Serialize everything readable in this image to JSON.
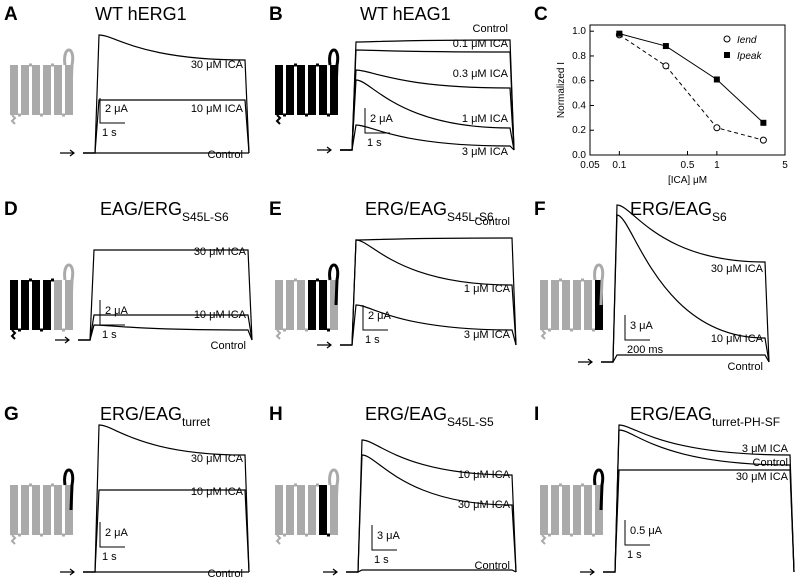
{
  "panels": [
    {
      "letter": "A",
      "title": "WT hERG1",
      "traces": [
        "30 μM ICA",
        "10 μM ICA",
        "Control"
      ],
      "scale": [
        "2 μA",
        "1 s"
      ]
    },
    {
      "letter": "B",
      "title": "WT hEAG1",
      "traces": [
        "Control",
        "0.1 μM ICA",
        "0.3 μM ICA",
        "1 μM ICA",
        "3 μM ICA"
      ],
      "scale": [
        "2 μA",
        "1 s"
      ]
    },
    {
      "letter": "C"
    },
    {
      "letter": "D",
      "title": "EAG/ERG",
      "subscript": "S45L-S6",
      "traces": [
        "30 μM ICA",
        "10 μM ICA",
        "Control"
      ],
      "scale": [
        "2 μA",
        "1 s"
      ]
    },
    {
      "letter": "E",
      "title": "ERG/EAG",
      "subscript": "S45L-S6",
      "traces": [
        "Control",
        "1 μM ICA",
        "3 μM ICA"
      ],
      "scale": [
        "2 μA",
        "1 s"
      ]
    },
    {
      "letter": "F",
      "title": "ERG/EAG",
      "subscript": "S6",
      "traces": [
        "30 μM ICA",
        "10 μM ICA",
        "Control"
      ],
      "scale": [
        "3 μA",
        "200 ms"
      ]
    },
    {
      "letter": "G",
      "title": "ERG/EAG",
      "subscript": "turret",
      "traces": [
        "30 μM ICA",
        "10 μM ICA",
        "Control"
      ],
      "scale": [
        "2 μA",
        "1 s"
      ]
    },
    {
      "letter": "H",
      "title": "ERG/EAG",
      "subscript": "S45L-S5",
      "traces": [
        "10 μM ICA",
        "30 μM ICA",
        "Control"
      ],
      "scale": [
        "3 μA",
        "1 s"
      ]
    },
    {
      "letter": "I",
      "title": "ERG/EAG",
      "subscript": "turret-PH-SF",
      "traces": [
        "3 μM ICA",
        "Control",
        "30 μM ICA"
      ],
      "scale": [
        "0.5 μA",
        "1 s"
      ]
    }
  ],
  "chart_data": {
    "type": "scatter",
    "xlabel": "[ICA] μM",
    "ylabel": "Normalized I",
    "log_x": true,
    "xlim": [
      0.05,
      5
    ],
    "xticks": [
      0.05,
      0.1,
      0.5,
      1,
      5
    ],
    "ylim": [
      0,
      1.05
    ],
    "yticks": [
      {
        "value": 0,
        "label": "0.0"
      },
      0.2,
      0.4,
      0.6,
      0.8,
      {
        "value": 1,
        "label": "1.0"
      }
    ],
    "legend": "upper right",
    "series": [
      {
        "name": "Iend",
        "marker": "open-circle",
        "line": "dashed",
        "color": "#000000",
        "x": [
          0.1,
          0.3,
          1,
          3
        ],
        "values": [
          0.97,
          0.72,
          0.22,
          0.12
        ]
      },
      {
        "name": "Ipeak",
        "marker": "filled-square",
        "line": "solid",
        "color": "#000000",
        "x": [
          0.1,
          0.3,
          1,
          3
        ],
        "values": [
          0.98,
          0.88,
          0.61,
          0.26
        ]
      }
    ]
  }
}
